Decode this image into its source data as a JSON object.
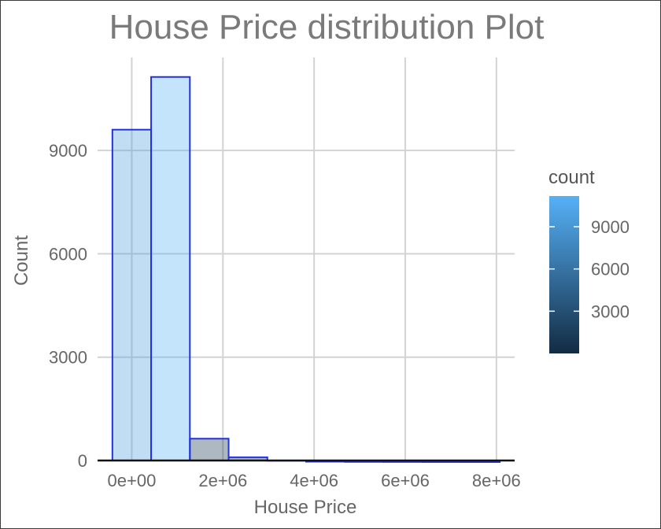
{
  "chart_data": {
    "type": "bar",
    "title": "House Price distribution Plot",
    "xlabel": "House Price",
    "ylabel": "Count",
    "xlim": [
      -750000,
      8400000
    ],
    "ylim": [
      0,
      11700
    ],
    "x_ticks": [
      0,
      2000000,
      4000000,
      6000000,
      8000000
    ],
    "x_tick_labels": [
      "0e+00",
      "2e+06",
      "4e+06",
      "6e+06",
      "8e+06"
    ],
    "y_ticks": [
      0,
      3000,
      6000,
      9000
    ],
    "y_tick_labels": [
      "0",
      "3000",
      "6000",
      "9000"
    ],
    "grid": true,
    "bin_width": 850000,
    "bin_edges": [
      -425000,
      425000,
      1275000,
      2125000,
      2975000,
      3825000,
      4675000,
      5525000,
      6375000,
      7225000,
      8075000
    ],
    "values": [
      9650,
      11180,
      680,
      140,
      40,
      12,
      6,
      4,
      2,
      1
    ],
    "bar_outline_color": "#2233dd",
    "legend": {
      "title": "count",
      "position": "right",
      "range": [
        0,
        11180
      ],
      "ticks": [
        3000,
        6000,
        9000
      ],
      "tick_labels": [
        "3000",
        "6000",
        "9000"
      ],
      "color_low": "#132b43",
      "color_high": "#56b1f7"
    }
  }
}
